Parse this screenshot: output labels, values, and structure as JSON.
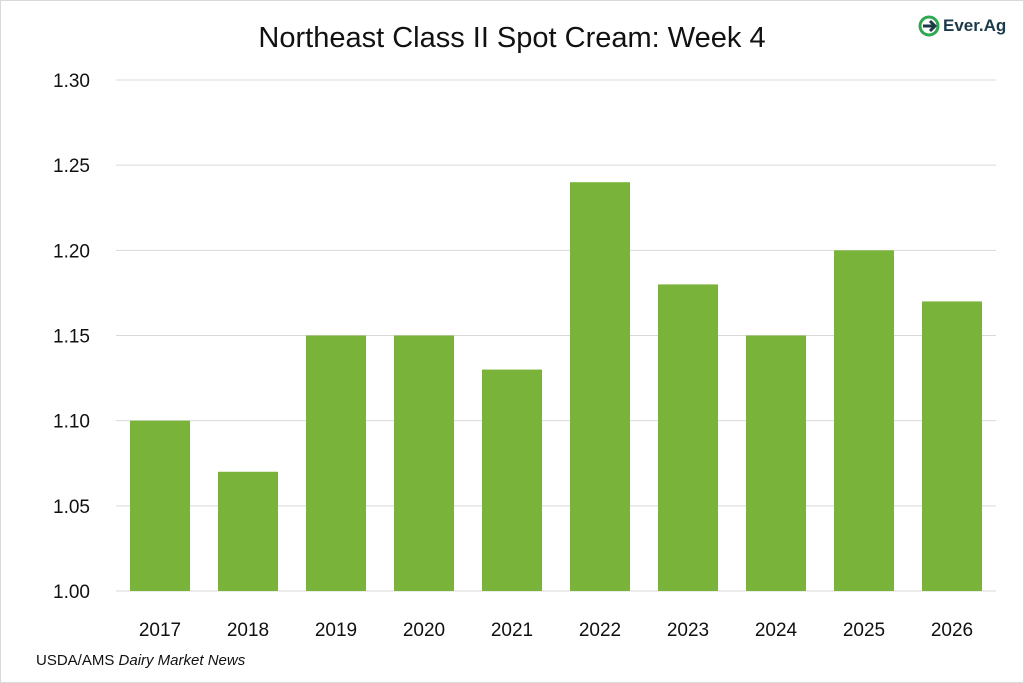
{
  "chart_data": {
    "type": "bar",
    "title": "Northeast Class II Spot Cream: Week 4",
    "categories": [
      "2017",
      "2018",
      "2019",
      "2020",
      "2021",
      "2022",
      "2023",
      "2024",
      "2025",
      "2026"
    ],
    "values": [
      1.1,
      1.07,
      1.15,
      1.15,
      1.13,
      1.24,
      1.18,
      1.15,
      1.2,
      1.17
    ],
    "yticks": [
      "1.00",
      "1.05",
      "1.10",
      "1.15",
      "1.20",
      "1.25",
      "1.30"
    ],
    "ylim": [
      1.0,
      1.3
    ],
    "grid": true,
    "bar_color": "#7ab339",
    "grid_color": "#d9d9d9"
  },
  "logo": {
    "text": "Ever.Ag",
    "icon": "ever-ag-logo-icon",
    "color": "#1c3b4a",
    "accent": "#2fa84f"
  },
  "source": {
    "prefix": "USDA/AMS ",
    "italic": "Dairy Market News"
  }
}
